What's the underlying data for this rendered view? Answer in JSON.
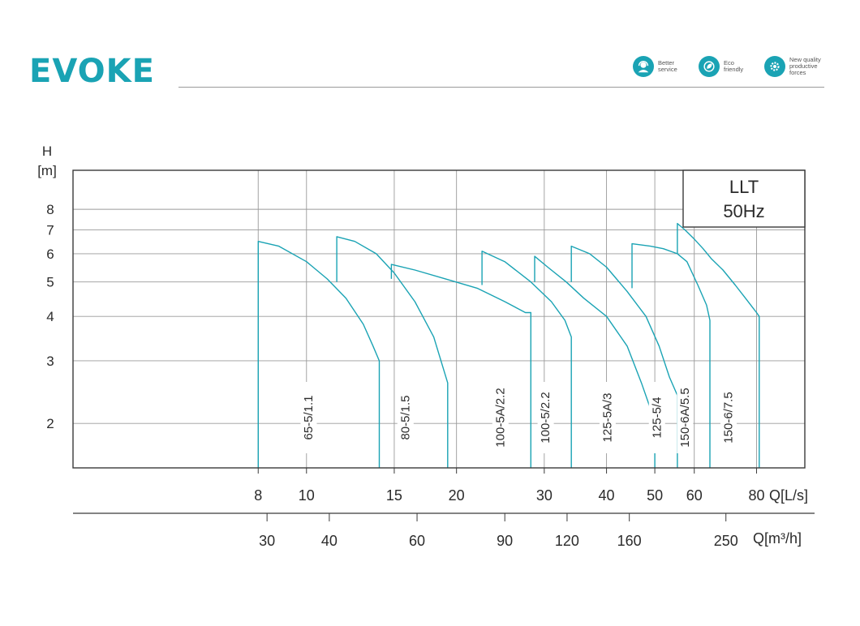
{
  "header": {
    "logo_text": "EVOKE",
    "badges": [
      {
        "icon": "headset-icon",
        "line1": "Better",
        "line2": "service",
        "line3": ""
      },
      {
        "icon": "leaf-icon",
        "line1": "Eco",
        "line2": "friendly",
        "line3": ""
      },
      {
        "icon": "gear-icon",
        "line1": "New quality",
        "line2": "productive",
        "line3": "forces"
      }
    ]
  },
  "colors": {
    "accent": "#1aa3b4",
    "curve": "#1aa3b4",
    "grid": "#9a9a9a",
    "frame": "#3a3a3a"
  },
  "chart_data": {
    "type": "line",
    "title_box": [
      "LLT",
      "50Hz"
    ],
    "y_label_lines": [
      "H",
      "[m]"
    ],
    "x_label": "Q[L/s]",
    "x2_label": "Q[m³/h]",
    "y_scale": "log",
    "x_scale": "log",
    "ylim": [
      1.5,
      10.3
    ],
    "xlim": [
      3.4,
      100
    ],
    "y_ticks": [
      2,
      3,
      4,
      5,
      6,
      7,
      8
    ],
    "x_ticks": [
      8,
      10,
      15,
      20,
      30,
      40,
      50,
      60,
      80
    ],
    "x2_ticks": [
      30,
      40,
      60,
      90,
      120,
      160,
      250
    ],
    "x_grid": [
      8,
      10,
      15,
      20,
      30,
      40,
      50,
      60,
      80
    ],
    "grid": true,
    "series": [
      {
        "name": "65-5/1.1",
        "label_x": 10.1,
        "points": [
          [
            8,
            1.5
          ],
          [
            8,
            6.5
          ],
          [
            8.8,
            6.3
          ],
          [
            10,
            5.7
          ],
          [
            11,
            5.1
          ],
          [
            12,
            4.5
          ],
          [
            13,
            3.8
          ],
          [
            13.6,
            3.3
          ],
          [
            14,
            3.0
          ],
          [
            14,
            1.5
          ]
        ]
      },
      {
        "name": "80-5/1.5",
        "label_x": 15.8,
        "points": [
          [
            11.5,
            5.0
          ],
          [
            11.5,
            6.7
          ],
          [
            12.5,
            6.5
          ],
          [
            13.8,
            6.0
          ],
          [
            15,
            5.3
          ],
          [
            16.5,
            4.4
          ],
          [
            18,
            3.5
          ],
          [
            19.2,
            2.6
          ],
          [
            19.2,
            1.5
          ]
        ]
      },
      {
        "name": "100-5A/2.2",
        "label_x": 24.5,
        "points": [
          [
            14.8,
            5.1
          ],
          [
            14.8,
            5.6
          ],
          [
            16.5,
            5.4
          ],
          [
            19,
            5.1
          ],
          [
            22,
            4.8
          ],
          [
            25,
            4.4
          ],
          [
            27.5,
            4.1
          ],
          [
            28.2,
            4.1
          ],
          [
            28.2,
            1.5
          ]
        ]
      },
      {
        "name": "100-5/2.2",
        "label_x": 30.2,
        "points": [
          [
            22.5,
            4.9
          ],
          [
            22.5,
            6.1
          ],
          [
            25,
            5.7
          ],
          [
            28.2,
            5.0
          ],
          [
            31,
            4.4
          ],
          [
            33,
            3.9
          ],
          [
            34,
            3.5
          ],
          [
            34,
            1.5
          ]
        ]
      },
      {
        "name": "125-5A/3",
        "label_x": 40.2,
        "points": [
          [
            28.7,
            5.0
          ],
          [
            28.7,
            5.9
          ],
          [
            30.5,
            5.5
          ],
          [
            33.2,
            5.0
          ],
          [
            36,
            4.5
          ],
          [
            40,
            4.0
          ],
          [
            44,
            3.3
          ],
          [
            47,
            2.6
          ],
          [
            49,
            2.2
          ],
          [
            50,
            1.95
          ],
          [
            50,
            1.5
          ]
        ]
      },
      {
        "name": "125-5/4",
        "label_x": 50.5,
        "points": [
          [
            34,
            5.0
          ],
          [
            34,
            6.3
          ],
          [
            37,
            6.0
          ],
          [
            40,
            5.5
          ],
          [
            44,
            4.7
          ],
          [
            48,
            4.0
          ],
          [
            51,
            3.3
          ],
          [
            53.5,
            2.7
          ],
          [
            55.5,
            2.4
          ],
          [
            55.5,
            1.5
          ]
        ]
      },
      {
        "name": "150-6A/5.5",
        "label_x": 57.5,
        "points": [
          [
            45,
            4.8
          ],
          [
            45,
            6.4
          ],
          [
            49,
            6.3
          ],
          [
            52,
            6.2
          ],
          [
            55.5,
            6.0
          ],
          [
            58,
            5.7
          ],
          [
            61,
            4.9
          ],
          [
            63.5,
            4.3
          ],
          [
            64.5,
            3.9
          ],
          [
            64.5,
            1.5
          ]
        ]
      },
      {
        "name": "150-6/7.5",
        "label_x": 70.3,
        "points": [
          [
            55.5,
            6.0
          ],
          [
            55.5,
            7.3
          ],
          [
            57.5,
            7.0
          ],
          [
            60,
            6.6
          ],
          [
            62.5,
            6.2
          ],
          [
            65,
            5.8
          ],
          [
            68.5,
            5.4
          ],
          [
            72.5,
            4.9
          ],
          [
            76,
            4.5
          ],
          [
            80,
            4.1
          ],
          [
            81,
            4.0
          ],
          [
            81,
            1.5
          ]
        ]
      }
    ]
  }
}
